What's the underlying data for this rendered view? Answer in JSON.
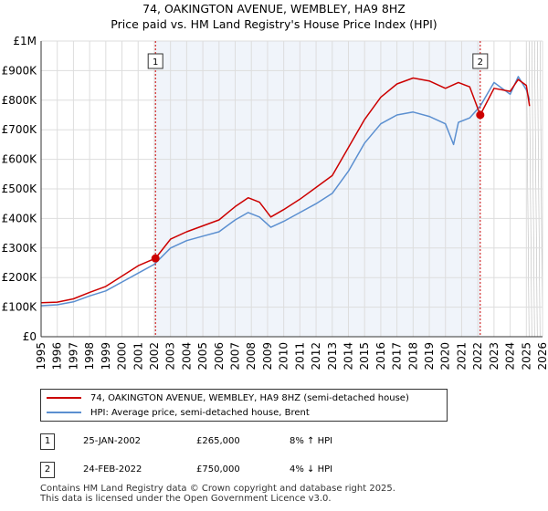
{
  "chart_data": {
    "type": "line",
    "title": "74, OAKINGTON AVENUE, WEMBLEY, HA9 8HZ",
    "subtitle": "Price paid vs. HM Land Registry's House Price Index (HPI)",
    "xlim": [
      1995,
      2026
    ],
    "ylim": [
      0,
      1000000
    ],
    "x_ticks": [
      "1995",
      "1996",
      "1997",
      "1998",
      "1999",
      "2000",
      "2001",
      "2002",
      "2003",
      "2004",
      "2005",
      "2006",
      "2007",
      "2008",
      "2009",
      "2010",
      "2011",
      "2012",
      "2013",
      "2014",
      "2015",
      "2016",
      "2017",
      "2018",
      "2019",
      "2020",
      "2021",
      "2022",
      "2023",
      "2024",
      "2025",
      "2026"
    ],
    "y_ticks": [
      {
        "value": 0,
        "label": "£0"
      },
      {
        "value": 100000,
        "label": "£100K"
      },
      {
        "value": 200000,
        "label": "£200K"
      },
      {
        "value": 300000,
        "label": "£300K"
      },
      {
        "value": 400000,
        "label": "£400K"
      },
      {
        "value": 500000,
        "label": "£500K"
      },
      {
        "value": 600000,
        "label": "£600K"
      },
      {
        "value": 700000,
        "label": "£700K"
      },
      {
        "value": 800000,
        "label": "£800K"
      },
      {
        "value": 900000,
        "label": "£900K"
      },
      {
        "value": 1000000,
        "label": "£1M"
      }
    ],
    "series": [
      {
        "name": "74, OAKINGTON AVENUE, WEMBLEY, HA9 8HZ (semi-detached house)",
        "color": "#cc0000",
        "x": [
          1995,
          1996,
          1997,
          1998,
          1999,
          2000,
          2001,
          2002.07,
          2003,
          2004,
          2005,
          2006,
          2007,
          2007.8,
          2008.5,
          2009.2,
          2010,
          2011,
          2012,
          2013,
          2014,
          2015,
          2016,
          2017,
          2018,
          2019,
          2020,
          2020.8,
          2021.5,
          2022.15,
          2023,
          2024,
          2024.5,
          2025,
          2025.2
        ],
        "y": [
          115000,
          117000,
          128000,
          150000,
          170000,
          205000,
          240000,
          265000,
          330000,
          355000,
          375000,
          395000,
          440000,
          470000,
          455000,
          405000,
          430000,
          465000,
          505000,
          545000,
          640000,
          735000,
          810000,
          855000,
          875000,
          865000,
          840000,
          860000,
          845000,
          750000,
          840000,
          830000,
          870000,
          850000,
          780000
        ]
      },
      {
        "name": "HPI: Average price, semi-detached house, Brent",
        "color": "#5b8fd0",
        "x": [
          1995,
          1996,
          1997,
          1998,
          1999,
          2000,
          2001,
          2002,
          2003,
          2004,
          2005,
          2006,
          2007,
          2007.8,
          2008.5,
          2009.2,
          2010,
          2011,
          2012,
          2013,
          2014,
          2015,
          2016,
          2017,
          2018,
          2019,
          2020,
          2020.5,
          2020.8,
          2021.5,
          2022.15,
          2023,
          2024,
          2024.5,
          2025,
          2025.2
        ],
        "y": [
          105000,
          108000,
          118000,
          138000,
          155000,
          185000,
          215000,
          245000,
          300000,
          325000,
          340000,
          355000,
          395000,
          420000,
          405000,
          370000,
          390000,
          420000,
          450000,
          485000,
          560000,
          655000,
          720000,
          750000,
          760000,
          745000,
          720000,
          650000,
          725000,
          740000,
          780000,
          860000,
          820000,
          880000,
          835000,
          800000
        ]
      }
    ],
    "sales": [
      {
        "num": "1",
        "x": 2002.07,
        "price": 265000
      },
      {
        "num": "2",
        "x": 2022.15,
        "price": 750000
      }
    ],
    "forecast_start": 2025.0
  },
  "legend": {
    "property": "74, OAKINGTON AVENUE, WEMBLEY, HA9 8HZ (semi-detached house)",
    "hpi": "HPI: Average price, semi-detached house, Brent"
  },
  "sales_table": [
    {
      "num": "1",
      "date": "25-JAN-2002",
      "price": "£265,000",
      "hpi": "8% ↑ HPI"
    },
    {
      "num": "2",
      "date": "24-FEB-2022",
      "price": "£750,000",
      "hpi": "4% ↓ HPI"
    }
  ],
  "footer": {
    "line1": "Contains HM Land Registry data © Crown copyright and database right 2025.",
    "line2": "This data is licensed under the Open Government Licence v3.0."
  },
  "colors": {
    "property": "#cc0000",
    "hpi": "#5b8fd0",
    "grid": "#dddddd",
    "plot_bg": "#f0f4fa",
    "marker_line": "#cc0000"
  }
}
